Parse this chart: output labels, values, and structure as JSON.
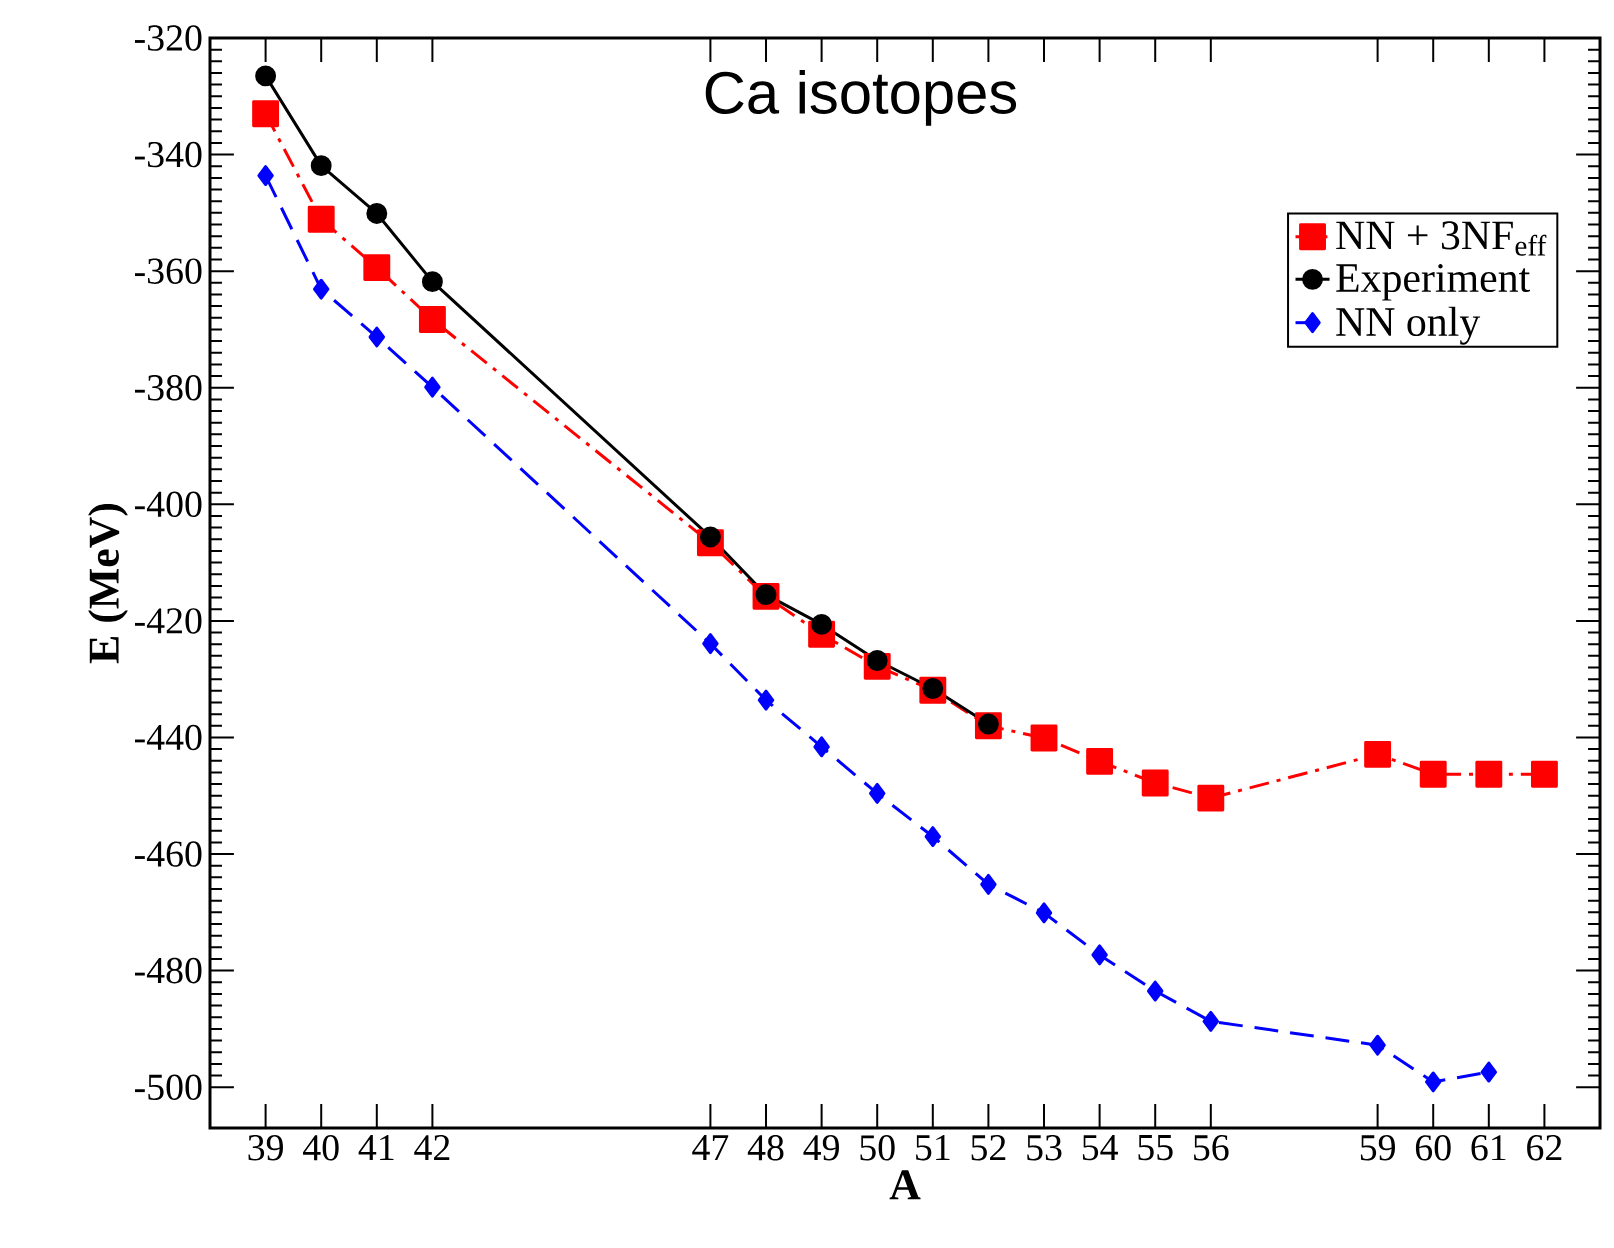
{
  "chart_data": {
    "type": "line",
    "title": "Ca isotopes",
    "xlabel": "A",
    "ylabel": "E (MeV)",
    "xlim": [
      38,
      63
    ],
    "ylim": [
      -507,
      -320
    ],
    "xticks": [
      39,
      40,
      41,
      42,
      47,
      48,
      49,
      50,
      51,
      52,
      53,
      54,
      55,
      56,
      59,
      60,
      61,
      62
    ],
    "yticks": [
      -320,
      -340,
      -360,
      -380,
      -400,
      -420,
      -440,
      -460,
      -480,
      -500
    ],
    "grid": false,
    "legend": "top right",
    "series": [
      {
        "name": "NN + 3NF$_{eff}$",
        "color": "#ff0000",
        "marker": "square",
        "line_style": "dashdot",
        "x": [
          39,
          40,
          41,
          42,
          47,
          48,
          49,
          50,
          51,
          52,
          53,
          54,
          55,
          56,
          59,
          60,
          61,
          62
        ],
        "values": [
          -333,
          -351.1,
          -359.4,
          -368.3,
          -406.6,
          -415.8,
          -422.3,
          -427.8,
          -431.9,
          -438,
          -440.1,
          -444.1,
          -447.8,
          -450.4,
          -442.9,
          -446.3,
          -446.3,
          -446.3
        ]
      },
      {
        "name": "Experiment",
        "color": "#000000",
        "marker": "circle",
        "line_style": "solid",
        "x": [
          39,
          40,
          41,
          42,
          47,
          48,
          49,
          50,
          51,
          52
        ],
        "values": [
          -326.5,
          -341.9,
          -350.1,
          -361.8,
          -405.6,
          -415.5,
          -420.6,
          -426.8,
          -431.6,
          -437.7
        ]
      },
      {
        "name": "NN only",
        "color": "#0000ff",
        "marker": "diamond",
        "line_style": "dashed",
        "x": [
          39,
          40,
          41,
          42,
          47,
          48,
          49,
          50,
          51,
          52,
          53,
          54,
          55,
          56,
          59,
          60,
          61
        ],
        "values": [
          -343.6,
          -363.1,
          -371.3,
          -379.9,
          -423.9,
          -433.6,
          -441.6,
          -449.6,
          -457,
          -465.2,
          -470.1,
          -477.3,
          -483.5,
          -488.7,
          -492.8,
          -499.1,
          -497.4
        ]
      }
    ]
  }
}
